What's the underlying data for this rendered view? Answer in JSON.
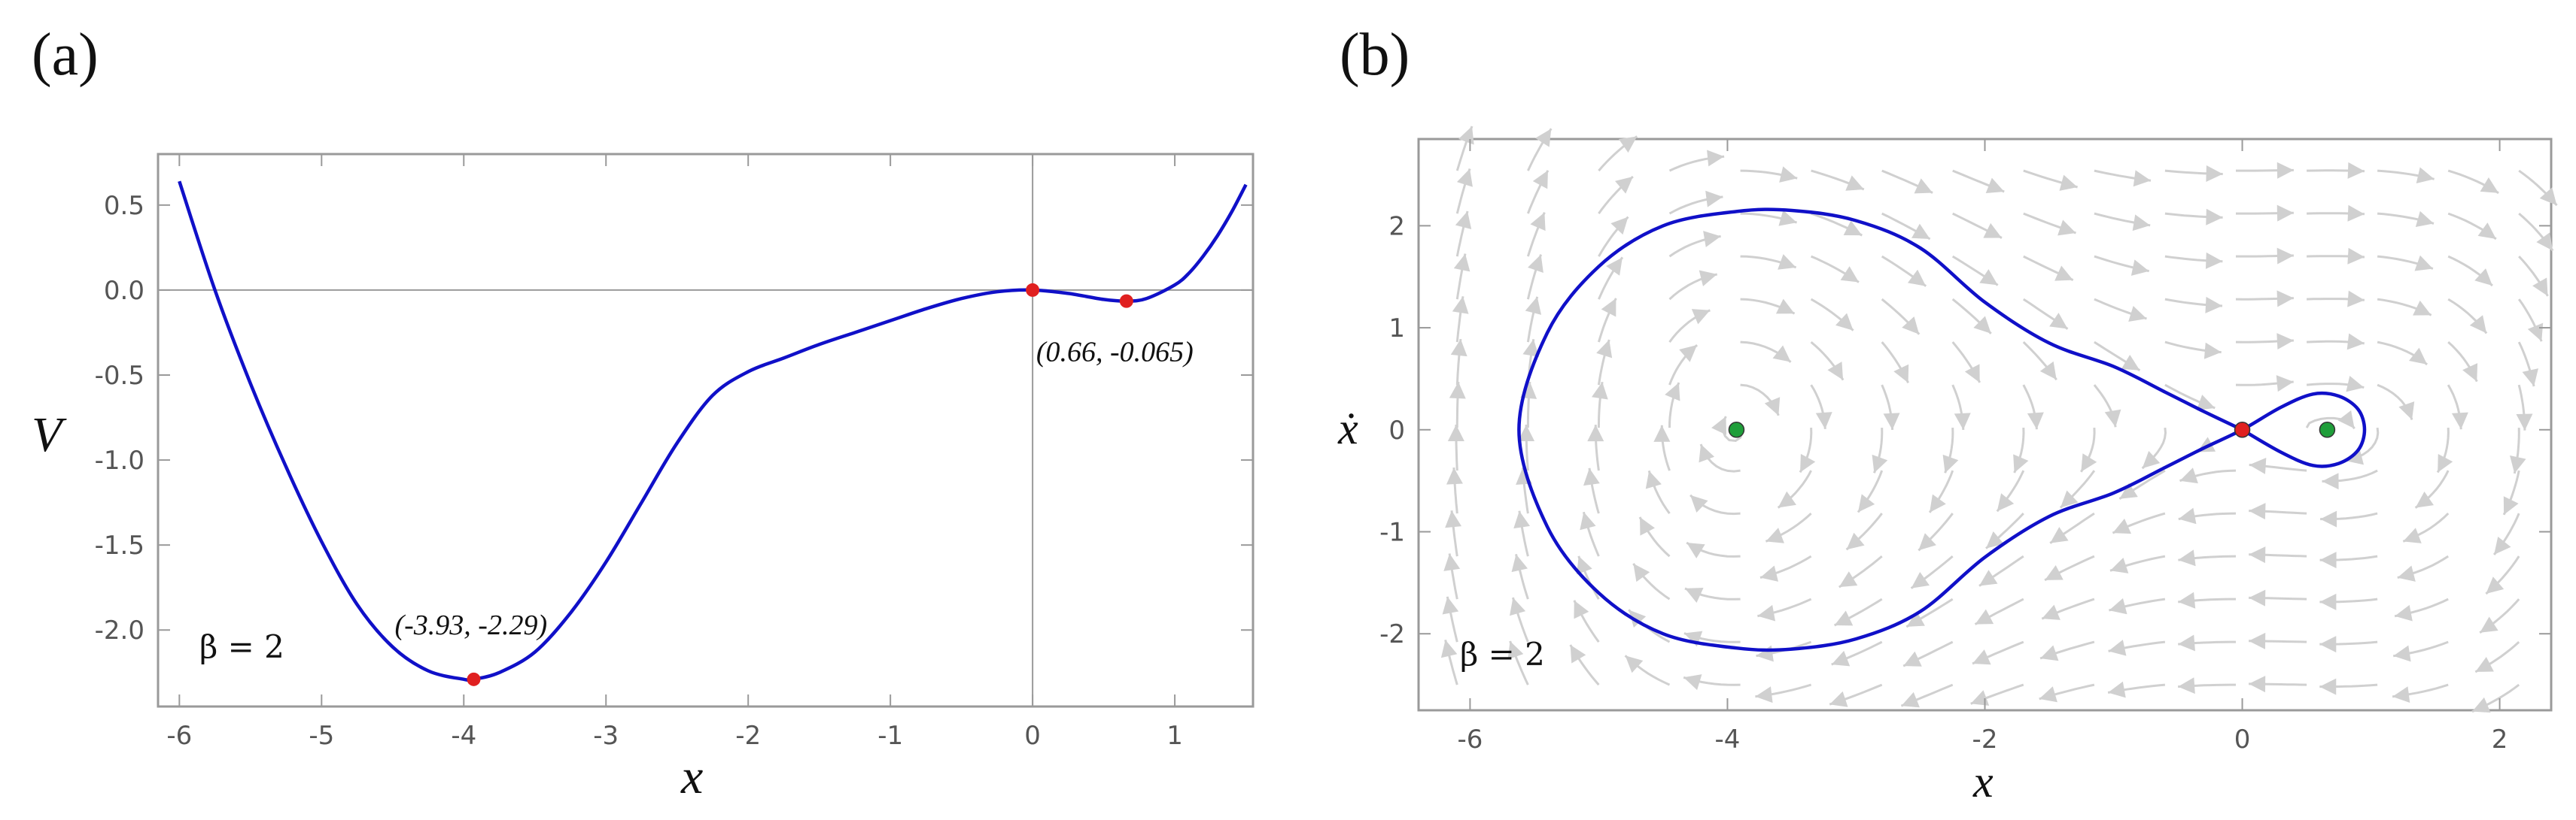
{
  "panels": {
    "a_label": "(a)",
    "b_label": "(b)"
  },
  "chart_data": [
    {
      "type": "line",
      "title": "",
      "xlabel": "x",
      "ylabel": "V",
      "xlim": [
        -6.15,
        1.55
      ],
      "ylim": [
        -2.45,
        0.8
      ],
      "xticks": [
        -6,
        -5,
        -4,
        -3,
        -2,
        -1,
        0,
        1
      ],
      "xtick_labels": [
        "-6",
        "-5",
        "-4",
        "-3",
        "-2",
        "-1",
        "0",
        "1"
      ],
      "yticks": [
        0.5,
        0.0,
        -0.5,
        -1.0,
        -1.5,
        -2.0
      ],
      "ytick_labels": [
        "0.5",
        "0.0",
        "-0.5",
        "-1.0",
        "-1.5",
        "-2.0"
      ],
      "series": [
        {
          "name": "V(x)",
          "color": "#1010c8",
          "x": [
            -6.0,
            -5.75,
            -5.5,
            -5.25,
            -5.0,
            -4.75,
            -4.5,
            -4.25,
            -4.0,
            -3.93,
            -3.75,
            -3.5,
            -3.25,
            -3.0,
            -2.75,
            -2.5,
            -2.25,
            -2.0,
            -1.75,
            -1.5,
            -1.25,
            -1.0,
            -0.75,
            -0.5,
            -0.25,
            0.0,
            0.25,
            0.5,
            0.66,
            0.8,
            1.0,
            1.1,
            1.2,
            1.3,
            1.4,
            1.5
          ],
          "y": [
            0.64,
            0.0,
            -0.55,
            -1.04,
            -1.48,
            -1.85,
            -2.1,
            -2.24,
            -2.29,
            -2.29,
            -2.25,
            -2.13,
            -1.9,
            -1.6,
            -1.25,
            -0.9,
            -0.62,
            -0.48,
            -0.4,
            -0.32,
            -0.25,
            -0.18,
            -0.11,
            -0.05,
            -0.01,
            0.0,
            -0.02,
            -0.055,
            -0.065,
            -0.05,
            0.03,
            0.1,
            0.2,
            0.32,
            0.46,
            0.62
          ]
        }
      ],
      "points": [
        {
          "x": -3.93,
          "y": -2.29,
          "color": "#e02020"
        },
        {
          "x": 0.0,
          "y": 0.0,
          "color": "#e02020"
        },
        {
          "x": 0.66,
          "y": -0.065,
          "color": "#e02020"
        }
      ],
      "annotations": [
        {
          "text": "(-3.93, -2.29)",
          "x": -3.93,
          "y": -2.29
        },
        {
          "text": "(0.66, -0.065)",
          "x": 0.66,
          "y": -0.065
        }
      ],
      "parameter_text": "β = 2",
      "reference_lines": {
        "hline": 0,
        "vline": 0
      }
    },
    {
      "type": "phase_portrait",
      "title": "",
      "xlabel": "x",
      "ylabel": "ẋ",
      "xlim": [
        -6.4,
        2.4
      ],
      "ylim": [
        -2.75,
        2.85
      ],
      "xticks": [
        -6,
        -4,
        -2,
        0,
        2
      ],
      "xtick_labels": [
        "-6",
        "-4",
        "-2",
        "0",
        "2"
      ],
      "yticks": [
        2,
        1,
        0,
        -1,
        -2
      ],
      "ytick_labels": [
        "2",
        "1",
        "0",
        "-1",
        "-2"
      ],
      "separatrix": {
        "color": "#1010c8",
        "x": [
          0.0,
          -0.3,
          -0.6,
          -1.0,
          -1.5,
          -2.0,
          -2.5,
          -3.0,
          -3.5,
          -3.93,
          -4.5,
          -5.0,
          -5.4,
          -5.62,
          -5.4,
          -5.0,
          -4.5,
          -3.93,
          -3.5,
          -3.0,
          -2.5,
          -2.0,
          -1.5,
          -1.0,
          -0.6,
          -0.3,
          0.0,
          0.3,
          0.55,
          0.75,
          0.9,
          0.95,
          0.9,
          0.75,
          0.55,
          0.3,
          0.0
        ],
        "y": [
          0.0,
          0.18,
          0.37,
          0.62,
          0.85,
          1.25,
          1.78,
          2.05,
          2.15,
          2.14,
          2.0,
          1.6,
          0.95,
          0.0,
          -0.95,
          -1.6,
          -2.0,
          -2.14,
          -2.15,
          -2.05,
          -1.78,
          -1.25,
          -0.85,
          -0.62,
          -0.37,
          -0.18,
          0.0,
          0.22,
          0.35,
          0.33,
          0.2,
          0.0,
          -0.2,
          -0.33,
          -0.35,
          -0.22,
          0.0
        ]
      },
      "points": [
        {
          "x": -3.93,
          "y": 0.0,
          "color": "#1f9e3a"
        },
        {
          "x": 0.66,
          "y": 0.0,
          "color": "#1f9e3a"
        },
        {
          "x": 0.0,
          "y": 0.0,
          "color": "#e02020"
        }
      ],
      "stream_color": "#d0d0d0",
      "parameter_text": "β = 2"
    }
  ]
}
